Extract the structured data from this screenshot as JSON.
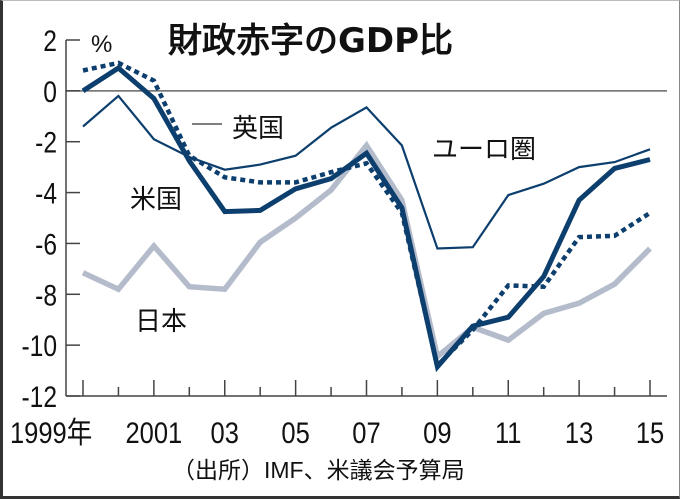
{
  "chart_data": {
    "type": "line",
    "title": "財政赤字のGDP比",
    "ylabel": "%",
    "xlabel": "",
    "source": "（出所）IMF、米議会予算局",
    "x": [
      1999,
      2000,
      2001,
      2002,
      2003,
      2004,
      2005,
      2006,
      2007,
      2008,
      2009,
      2010,
      2011,
      2012,
      2013,
      2014,
      2015
    ],
    "x_tick_labels": [
      {
        "x": 1999,
        "label": "1999年"
      },
      {
        "x": 2001,
        "label": "2001"
      },
      {
        "x": 2003,
        "label": "03"
      },
      {
        "x": 2005,
        "label": "05"
      },
      {
        "x": 2007,
        "label": "07"
      },
      {
        "x": 2009,
        "label": "09"
      },
      {
        "x": 2011,
        "label": "11"
      },
      {
        "x": 2013,
        "label": "13"
      },
      {
        "x": 2015,
        "label": "15"
      }
    ],
    "y_ticks": [
      2,
      0,
      -2,
      -4,
      -6,
      -8,
      -10,
      -12
    ],
    "y_tick_labels": [
      "2",
      "0",
      "-2",
      "-4",
      "-6",
      "-8",
      "-10",
      "-12"
    ],
    "ylim": [
      -12,
      2
    ],
    "xlim": [
      1999,
      2015
    ],
    "zero_line": true,
    "grid": false,
    "series": [
      {
        "name": "ユーロ圏",
        "style": "thin",
        "color": "#0d3f6e",
        "values": [
          -1.4,
          -0.2,
          -1.9,
          -2.6,
          -3.1,
          -2.9,
          -2.55,
          -1.45,
          -0.65,
          -2.15,
          -6.2,
          -6.15,
          -4.1,
          -3.65,
          -3.0,
          -2.8,
          -2.3
        ]
      },
      {
        "name": "英国",
        "style": "dotted",
        "color": "#0d3f6e",
        "values": [
          0.8,
          1.1,
          0.4,
          -2.55,
          -3.4,
          -3.6,
          -3.6,
          -3.2,
          -2.85,
          -4.8,
          -10.8,
          -9.4,
          -7.65,
          -7.7,
          -5.75,
          -5.7,
          -4.8
        ]
      },
      {
        "name": "米国",
        "style": "thick",
        "color": "#0d3f6e",
        "values": [
          0.0,
          0.9,
          -0.3,
          -2.75,
          -4.75,
          -4.7,
          -3.85,
          -3.45,
          -2.45,
          -4.6,
          -10.85,
          -9.25,
          -8.9,
          -7.3,
          -4.3,
          -3.05,
          -2.7
        ]
      },
      {
        "name": "日本",
        "style": "gray",
        "color": "#b4bccb",
        "values": [
          -7.15,
          -7.8,
          -6.1,
          -7.7,
          -7.8,
          -5.95,
          -5.0,
          -3.9,
          -2.15,
          -4.3,
          -10.45,
          -9.3,
          -9.8,
          -8.75,
          -8.35,
          -7.6,
          -6.2
        ]
      }
    ],
    "annotations": [
      {
        "text": "英国",
        "series": "英国",
        "leader": true
      },
      {
        "text": "米国",
        "series": "米国"
      },
      {
        "text": "ユーロ圏",
        "series": "ユーロ圏"
      },
      {
        "text": "日本",
        "series": "日本"
      }
    ]
  }
}
